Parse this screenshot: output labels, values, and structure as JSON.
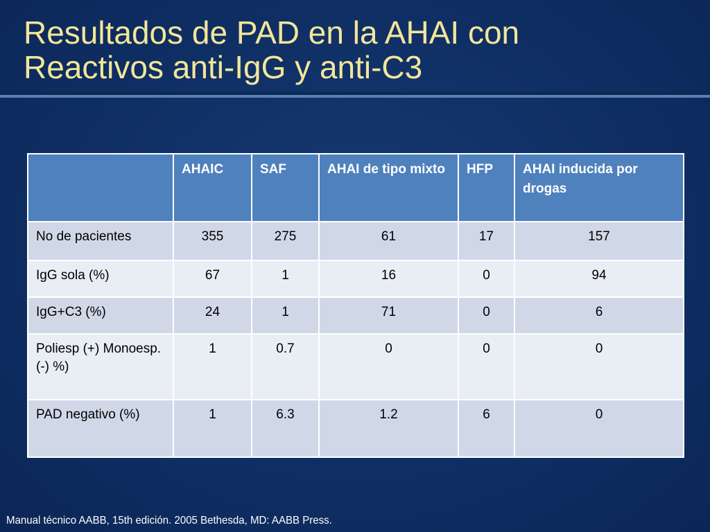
{
  "slide": {
    "title_lines": [
      "Resultados de PAD en la AHAI con",
      "Reactivos anti-IgG y anti-C3"
    ],
    "footer": "Manual técnico AABB, 15th edición. 2005 Bethesda, MD: AABB Press."
  },
  "table": {
    "headers": [
      "",
      "AHAIC",
      "SAF",
      "AHAI de tipo mixto",
      "HFP",
      "AHAI inducida por drogas"
    ],
    "rows": [
      {
        "label": "No de pacientes",
        "values": [
          "355",
          "275",
          "61",
          "17",
          "157"
        ]
      },
      {
        "label": "IgG sola (%)",
        "values": [
          "67",
          "1",
          "16",
          "0",
          "94"
        ]
      },
      {
        "label": "IgG+C3 (%)",
        "values": [
          "24",
          "1",
          "71",
          "0",
          "6"
        ]
      },
      {
        "label": "Poliesp (+) Monoesp. (-) %)",
        "values": [
          "1",
          "0.7",
          "0",
          "0",
          "0"
        ]
      },
      {
        "label": "PAD negativo (%)",
        "values": [
          "1",
          "6.3",
          "1.2",
          "6",
          "0"
        ]
      }
    ]
  },
  "colors": {
    "background": "#0f2f64",
    "title": "#f3e69a",
    "header_fill": "#4f81bd",
    "row_odd": "#d0d8e8",
    "row_even": "#e9edf4"
  }
}
